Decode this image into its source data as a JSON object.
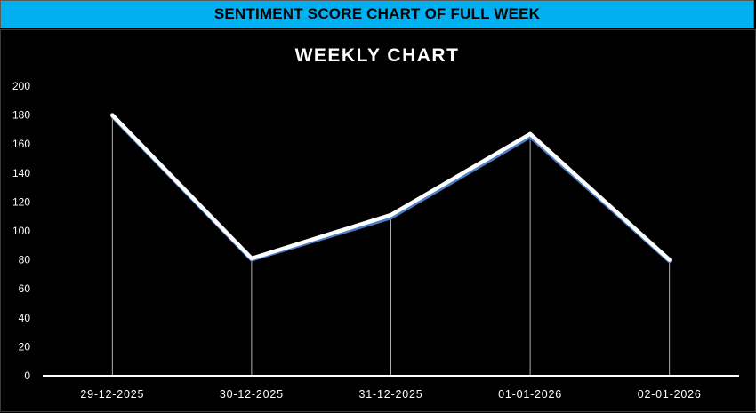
{
  "banner": {
    "title": "SENTIMENT SCORE CHART OF FULL WEEK",
    "background": "#00b0f0"
  },
  "chart_data": {
    "type": "line",
    "title": "WEEKLY CHART",
    "xlabel": "",
    "ylabel": "",
    "categories": [
      "29-12-2025",
      "30-12-2025",
      "31-12-2025",
      "01-01-2026",
      "02-01-2026"
    ],
    "series": [
      {
        "values": [
          179,
          80,
          109,
          165,
          79
        ],
        "color": "#4a7ec8"
      },
      {
        "values": [
          180,
          81,
          111,
          167,
          80
        ],
        "color": "#ffffff"
      }
    ],
    "ylim": [
      0,
      200
    ],
    "yticks": [
      0,
      20,
      40,
      60,
      80,
      100,
      120,
      140,
      160,
      180,
      200
    ],
    "grid": false,
    "drop_lines": true,
    "legend": "none",
    "colors": {
      "background": "#000000",
      "text": "#ffffff",
      "axis": "#ffffff"
    }
  }
}
